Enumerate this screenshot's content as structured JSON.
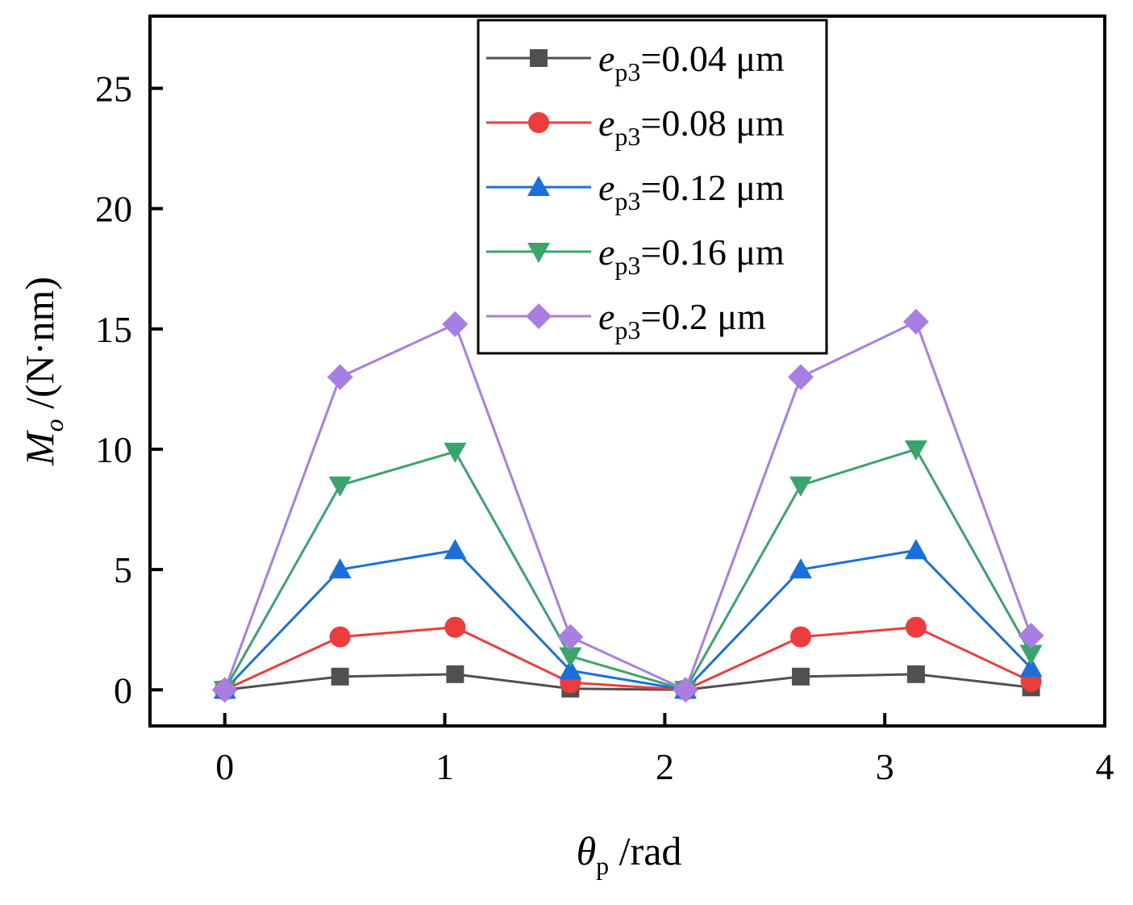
{
  "chart_data": {
    "type": "line",
    "title": "",
    "xlabel": {
      "symbol": "θ",
      "sub": "p",
      "unit": " /rad"
    },
    "ylabel": {
      "symbol": "M",
      "sub": "o",
      "unit": " /(N·nm)"
    },
    "xlim": [
      -0.34,
      4.0
    ],
    "ylim": [
      -1.5,
      28.0
    ],
    "xticks": [
      0,
      1,
      2,
      3,
      4
    ],
    "yticks": [
      0,
      5,
      10,
      15,
      20,
      25
    ],
    "grid": false,
    "legend_position": "top-center",
    "x": [
      0,
      0.524,
      1.047,
      1.571,
      2.094,
      2.618,
      3.142,
      3.665
    ],
    "series": [
      {
        "name_symbol": "e",
        "name_sub": "p3",
        "name_value": "=0.04 μm",
        "color": "#505050",
        "marker": "square",
        "values": [
          0,
          0.55,
          0.65,
          0.05,
          0,
          0.55,
          0.65,
          0.1
        ]
      },
      {
        "name_symbol": "e",
        "name_sub": "p3",
        "name_value": "=0.08 μm",
        "color": "#ee3b3b",
        "marker": "circle",
        "values": [
          0,
          2.2,
          2.6,
          0.3,
          0,
          2.2,
          2.6,
          0.35
        ]
      },
      {
        "name_symbol": "e",
        "name_sub": "p3",
        "name_value": "=0.12 μm",
        "color": "#1a6fdc",
        "marker": "triangle-up",
        "values": [
          0,
          5.0,
          5.8,
          0.8,
          0,
          5.0,
          5.8,
          0.9
        ]
      },
      {
        "name_symbol": "e",
        "name_sub": "p3",
        "name_value": "=0.16 μm",
        "color": "#3aa56a",
        "marker": "triangle-down",
        "values": [
          0,
          8.5,
          9.9,
          1.4,
          0,
          8.5,
          10.0,
          1.5
        ]
      },
      {
        "name_symbol": "e",
        "name_sub": "p3",
        "name_value": "=0.2 μm",
        "color": "#a97ee3",
        "marker": "diamond",
        "values": [
          0,
          13.0,
          15.2,
          2.2,
          0,
          13.0,
          15.3,
          2.25
        ]
      }
    ]
  }
}
